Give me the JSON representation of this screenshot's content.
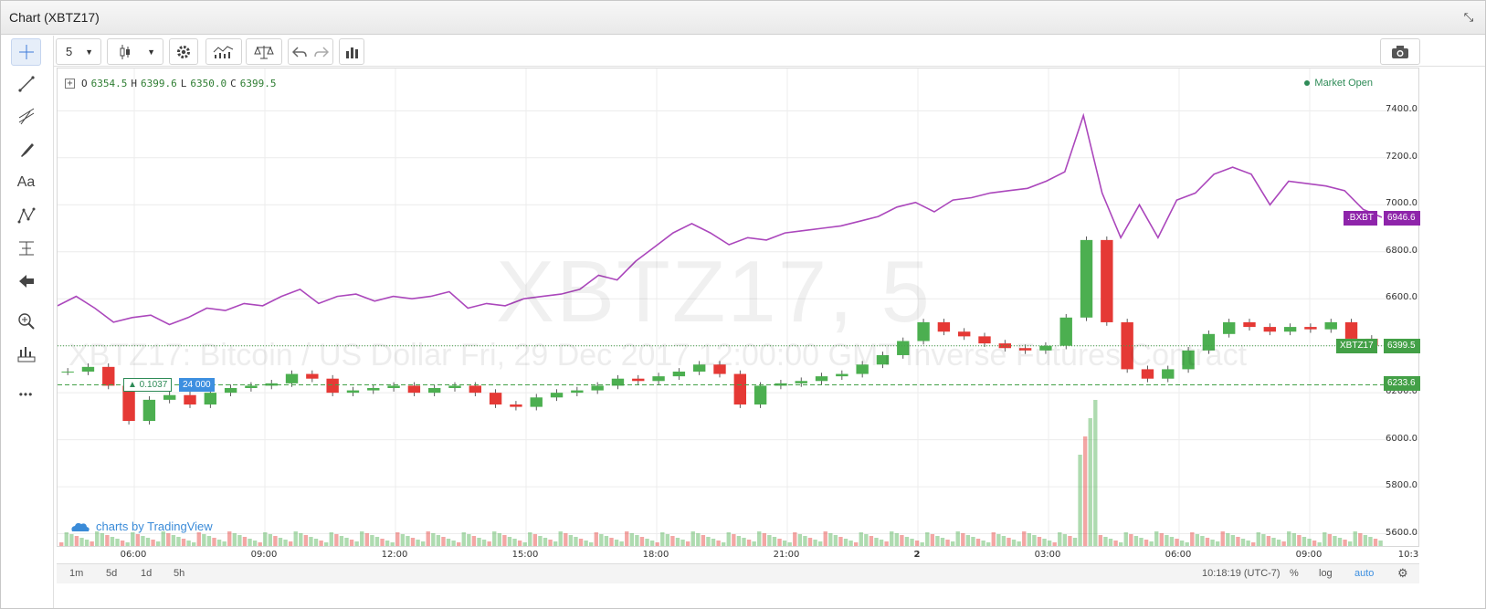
{
  "window": {
    "title": "Chart (XBTZ17)"
  },
  "toolbar": {
    "interval": "5",
    "icons": [
      "candles-icon",
      "settings-icon",
      "indicators-icon",
      "compare-icon",
      "undo-icon",
      "redo-icon",
      "bar-chart-icon",
      "camera-icon"
    ]
  },
  "leftbar": {
    "tools": [
      "crosshair-icon",
      "trend-line-icon",
      "fib-icon",
      "brush-icon",
      "text-icon",
      "pattern-icon",
      "measure-icon",
      "arrow-icon",
      "zoom-icon",
      "ruler-icon",
      "more-icon"
    ],
    "text_tool_label": "Aa",
    "more_label": "•••"
  },
  "ohlc": {
    "o_label": "O",
    "o": "6354.5",
    "h_label": "H",
    "h": "6399.6",
    "l_label": "L",
    "l": "6350.0",
    "c_label": "C",
    "c": "6399.5"
  },
  "market_status": "Market Open",
  "watermark": "XBTZ17, 5",
  "watermark_desc": "XBTZ17: Bitcoin / US Dollar Fri, 29 Dec 2017 12:00:00 GMT Inverse Futures Contract",
  "logo_text": "charts by TradingView",
  "volume_indicator": {
    "value": "▲ 0.1037",
    "volume": "24 000"
  },
  "badges": {
    "bxbt_label": ".BXBT",
    "bxbt_value": "6946.6",
    "xbtz_label": "XBTZ17",
    "xbtz_value": "6399.5",
    "line_value": "6233.6"
  },
  "colors": {
    "up": "#4caf50",
    "down": "#e53935",
    "index_line": "#ab47bc",
    "bxbt_badge": "#8e24aa",
    "xbtz_badge": "#43a047"
  },
  "bottombar": {
    "ranges": [
      "1m",
      "5d",
      "1d",
      "5h"
    ],
    "time": "10:18:19 (UTC-7)",
    "pct": "%",
    "log": "log",
    "auto": "auto"
  },
  "chart_data": {
    "type": "line",
    "price_ticks": [
      "7400.0",
      "7200.0",
      "7000.0",
      "6800.0",
      "6600.0",
      "6400.0",
      "6200.0",
      "6000.0",
      "5800.0",
      "5600.0"
    ],
    "time_ticks": [
      "06:00",
      "09:00",
      "12:00",
      "15:00",
      "18:00",
      "21:00",
      "2",
      "03:00",
      "06:00",
      "09:00",
      "10:3"
    ],
    "ylim": [
      5540,
      7580
    ],
    "series": [
      {
        "name": ".BXBT",
        "type": "line",
        "values": [
          6570,
          6610,
          6560,
          6500,
          6520,
          6530,
          6490,
          6520,
          6560,
          6550,
          6580,
          6570,
          6610,
          6640,
          6580,
          6610,
          6620,
          6590,
          6610,
          6600,
          6610,
          6630,
          6560,
          6580,
          6570,
          6600,
          6610,
          6620,
          6640,
          6700,
          6680,
          6760,
          6820,
          6880,
          6920,
          6880,
          6830,
          6860,
          6850,
          6880,
          6890,
          6900,
          6910,
          6930,
          6950,
          6990,
          7010,
          6970,
          7020,
          7030,
          7050,
          7060,
          7070,
          7100,
          7140,
          7380,
          7050,
          6860,
          7000,
          6860,
          7020,
          7050,
          7130,
          7160,
          7130,
          7000,
          7100,
          7090,
          7080,
          7060,
          6980,
          6946.6
        ]
      },
      {
        "name": "XBTZ17",
        "type": "candlestick",
        "values": [
          6290,
          6310,
          6230,
          6080,
          6170,
          6190,
          6150,
          6200,
          6220,
          6230,
          6240,
          6280,
          6260,
          6200,
          6210,
          6220,
          6230,
          6200,
          6220,
          6230,
          6200,
          6150,
          6140,
          6180,
          6200,
          6210,
          6230,
          6260,
          6250,
          6270,
          6290,
          6320,
          6280,
          6150,
          6230,
          6240,
          6250,
          6270,
          6280,
          6320,
          6360,
          6420,
          6500,
          6460,
          6440,
          6410,
          6390,
          6380,
          6400,
          6520,
          6850,
          6500,
          6300,
          6260,
          6300,
          6380,
          6450,
          6500,
          6480,
          6460,
          6480,
          6470,
          6500,
          6430,
          6399.5
        ]
      }
    ]
  }
}
